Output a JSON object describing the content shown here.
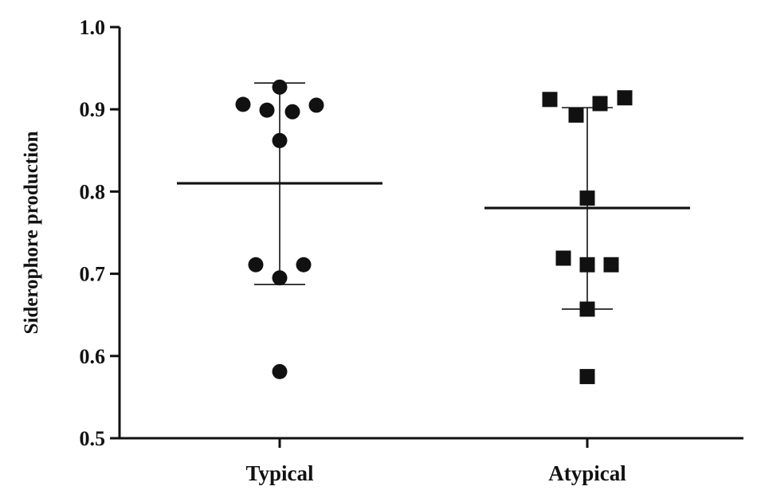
{
  "chart_data": {
    "type": "scatter",
    "title": "",
    "xlabel": "",
    "ylabel": "Siderophore production",
    "ylim": [
      0.5,
      1.0
    ],
    "yticks": [
      "0.5",
      "0.6",
      "0.7",
      "0.8",
      "0.9",
      "1.0"
    ],
    "categories": [
      "Typical",
      "Atypical"
    ],
    "grid": false,
    "series": [
      {
        "category": "Typical",
        "marker": "circle",
        "mean": 0.81,
        "error_upper": 0.932,
        "error_lower": 0.687,
        "values": [
          0.927,
          0.906,
          0.899,
          0.897,
          0.905,
          0.862,
          0.711,
          0.711,
          0.695,
          0.581
        ]
      },
      {
        "category": "Atypical",
        "marker": "square",
        "mean": 0.78,
        "error_upper": 0.902,
        "error_lower": 0.657,
        "values": [
          0.912,
          0.893,
          0.907,
          0.914,
          0.792,
          0.719,
          0.711,
          0.711,
          0.657,
          0.575
        ]
      }
    ]
  }
}
